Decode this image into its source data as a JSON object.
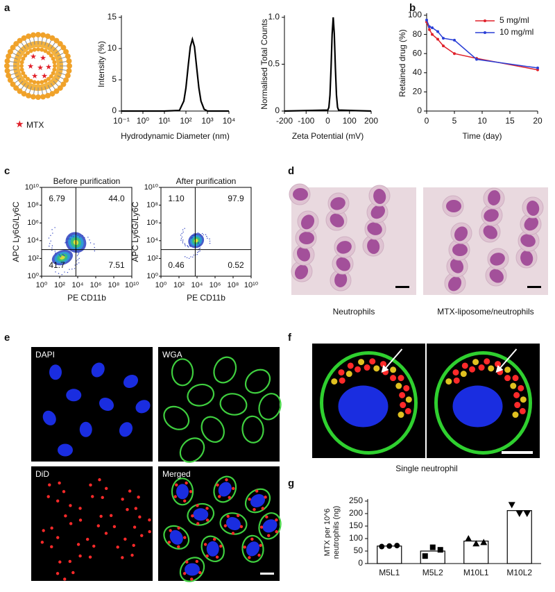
{
  "panel_labels": [
    "a",
    "b",
    "c",
    "d",
    "e",
    "f",
    "g"
  ],
  "legend_a": "MTX",
  "chart_data": [
    {
      "type": "line",
      "x_label": "Hydrodynamic Diameter (nm)",
      "y_label": "Intensity (%)",
      "xlog": true,
      "x": [
        0.1,
        10,
        50,
        80,
        100,
        130,
        160,
        200,
        250,
        320,
        400,
        500,
        700,
        1000,
        10000
      ],
      "values": [
        0,
        0,
        0.1,
        1.6,
        3.7,
        7.5,
        10.3,
        11.5,
        10.3,
        6.8,
        3.7,
        1.6,
        0.3,
        0,
        0
      ],
      "color": "#000000",
      "xlim": [
        0.1,
        10000
      ],
      "xticks": [
        {
          "value": 0.1,
          "label": "10⁻¹"
        },
        {
          "value": 1,
          "label": "10⁰"
        },
        {
          "value": 10,
          "label": "10¹"
        },
        {
          "value": 100,
          "label": "10²"
        },
        {
          "value": 1000,
          "label": "10³"
        },
        {
          "value": 10000,
          "label": "10⁴"
        }
      ],
      "ylim": [
        0,
        15
      ],
      "yticks": [
        0,
        5,
        10,
        15
      ]
    },
    {
      "type": "line",
      "x_label": "Zeta Potential (mV)",
      "y_label": "Normalised Total Counts",
      "x": [
        -200,
        0,
        5,
        10,
        15,
        20,
        25,
        30,
        35,
        40,
        45,
        50,
        200
      ],
      "values": [
        0,
        0.01,
        0.04,
        0.17,
        0.46,
        0.82,
        1,
        0.82,
        0.46,
        0.17,
        0.04,
        0.01,
        0
      ],
      "color": "#000000",
      "xlim": [
        -200,
        200
      ],
      "xticks": [
        -200,
        -100,
        0,
        100,
        200
      ],
      "ylim": [
        0,
        1
      ],
      "yticks": [
        0,
        0.5,
        {
          "value": 1,
          "label": "1.0"
        }
      ]
    },
    {
      "type": "line",
      "x_label": "Time (day)",
      "y_label": "Retained drug (%)",
      "markers": true,
      "legend": "top-right",
      "series": [
        {
          "name": "5 mg/ml",
          "color": "#e0202a",
          "x": [
            0,
            0.5,
            1,
            2,
            3,
            5,
            9,
            20
          ],
          "values": [
            93,
            85,
            80,
            75,
            68,
            60,
            55,
            43
          ]
        },
        {
          "name": "10 mg/ml",
          "color": "#2a3fd6",
          "x": [
            0,
            0.5,
            1,
            2,
            3,
            5,
            9,
            20
          ],
          "values": [
            95,
            88,
            87,
            83,
            76,
            74,
            54,
            45
          ]
        }
      ],
      "xlim": [
        0,
        20
      ],
      "xticks": [
        0,
        5,
        10,
        15,
        20
      ],
      "ylim": [
        0,
        100
      ],
      "yticks": [
        0,
        20,
        40,
        60,
        80,
        100
      ]
    },
    {
      "type": "bar",
      "y_label": [
        "MTX per 10^6",
        "neutrophils (ng)"
      ],
      "categories": [
        "M5L1",
        "M5L2",
        "M10L1",
        "M10L2"
      ],
      "values": [
        70,
        50,
        90,
        212
      ],
      "points": [
        [
          68,
          70,
          72
        ],
        [
          30,
          65,
          55
        ],
        [
          100,
          80,
          85
        ],
        [
          235,
          200,
          200
        ]
      ],
      "color": "#ffffff",
      "ylim": [
        0,
        250
      ],
      "yticks": [
        0,
        50,
        100,
        150,
        200,
        250
      ]
    }
  ],
  "flow": {
    "x_label": "PE CD11b",
    "y_label": "APC Ly6G/Ly6C",
    "ticks": [
      "10⁰",
      "10²",
      "10⁴",
      "10⁶",
      "10⁸",
      "10¹⁰"
    ],
    "panels": [
      {
        "title": "Before purification",
        "quadrants": [
          "6.79",
          "44.0",
          "41.7",
          "7.51"
        ]
      },
      {
        "title": "After purification",
        "quadrants": [
          "1.10",
          "97.9",
          "0.46",
          "0.52"
        ]
      }
    ]
  },
  "d": {
    "captions": [
      "Neutrophils",
      "MTX-liposome/neutrophils"
    ]
  },
  "e": {
    "channels": [
      "DAPI",
      "WGA",
      "DiD",
      "Merged"
    ]
  },
  "f": {
    "caption": "Single neutrophil"
  }
}
